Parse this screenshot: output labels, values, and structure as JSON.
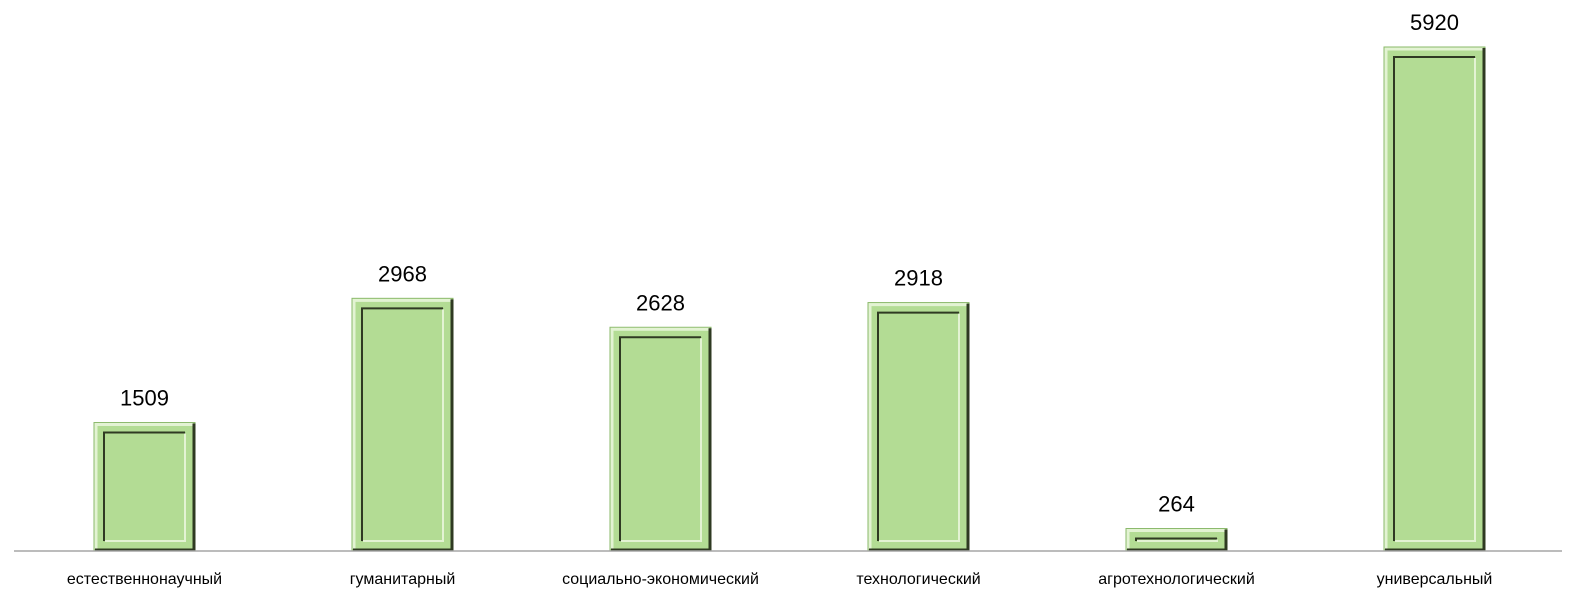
{
  "chart_data": {
    "type": "bar",
    "categories": [
      "естественнонаучный",
      "гуманитарный",
      "социально-экономический",
      "технологический",
      "агротехнологический",
      "универсальный"
    ],
    "values": [
      1509,
      2968,
      2628,
      2918,
      264,
      5920
    ],
    "value_labels": [
      "1509",
      "2968",
      "2628",
      "2918",
      "264",
      "5920"
    ],
    "title": "",
    "xlabel": "",
    "ylabel": "",
    "ylim": [
      0,
      6000
    ],
    "grid": false,
    "legend": "none",
    "colors": {
      "bar_fill": "#b3dc94",
      "bar_light": "#e3f3d3",
      "bar_dark": "#2f3a22",
      "bar_mid": "#8ab86a",
      "axis": "#a6a6a6"
    }
  }
}
